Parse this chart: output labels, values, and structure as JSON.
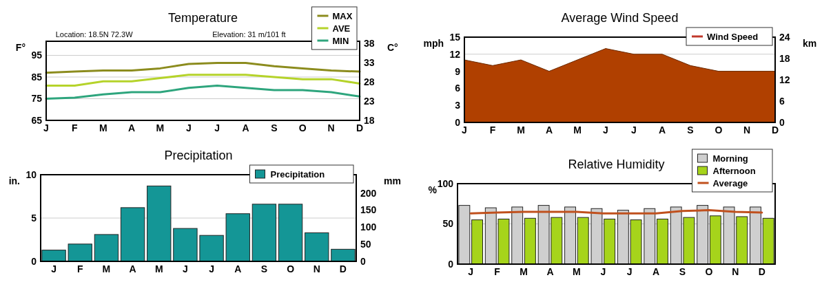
{
  "chart_data": [
    {
      "type": "line",
      "title": "Temperature",
      "ylabel": "F°",
      "y2label": "C°",
      "categories": [
        "J",
        "F",
        "M",
        "A",
        "M",
        "J",
        "J",
        "A",
        "S",
        "O",
        "N",
        "D"
      ],
      "ylim": [
        65,
        101.5
      ],
      "yticks": [
        65,
        75,
        85,
        95
      ],
      "y2lim": [
        18,
        38.6
      ],
      "y2ticks": [
        18,
        23,
        28,
        33,
        38
      ],
      "grid": "y",
      "legend": "top right",
      "annotations": [
        "Location: 18.5N 72.3W",
        "Elevation: 31 m/101 ft"
      ],
      "series": [
        {
          "name": "MAX",
          "color": "#8c8c1e",
          "values": [
            87,
            87.5,
            88,
            88,
            89,
            91,
            91.5,
            91.5,
            90,
            89,
            88,
            87.5
          ]
        },
        {
          "name": "AVE",
          "color": "#b5d32a",
          "values": [
            81,
            81,
            83,
            83,
            84.5,
            86,
            86,
            86,
            85,
            84,
            84,
            82
          ]
        },
        {
          "name": "MIN",
          "color": "#2ea57d",
          "values": [
            75,
            75.5,
            77,
            78,
            78,
            80,
            81,
            80,
            79,
            79,
            78,
            76
          ]
        }
      ]
    },
    {
      "type": "area",
      "title": "Average Wind Speed",
      "ylabel": "mph",
      "y2label": "km",
      "categories": [
        "J",
        "F",
        "M",
        "A",
        "M",
        "J",
        "J",
        "A",
        "S",
        "O",
        "N",
        "D"
      ],
      "ylim": [
        0,
        15
      ],
      "yticks": [
        0,
        3,
        6,
        9,
        12,
        15
      ],
      "y2lim": [
        0,
        24
      ],
      "y2ticks": [
        0,
        6,
        12,
        18,
        24
      ],
      "grid": "y",
      "legend": "top right",
      "series": [
        {
          "name": "Wind Speed",
          "color": "#b04000",
          "values": [
            11,
            10,
            11,
            9,
            11,
            13,
            12,
            12,
            10,
            9,
            9,
            9
          ]
        }
      ]
    },
    {
      "type": "bar",
      "title": "Precipitation",
      "ylabel": "in.",
      "y2label": "mm",
      "categories": [
        "J",
        "F",
        "M",
        "A",
        "M",
        "J",
        "J",
        "A",
        "S",
        "O",
        "N",
        "D"
      ],
      "ylim": [
        0,
        10
      ],
      "yticks": [
        0,
        5,
        10
      ],
      "y2lim": [
        0,
        254
      ],
      "y2ticks": [
        0,
        50,
        100,
        150,
        200
      ],
      "grid": "y",
      "legend": "top right",
      "series": [
        {
          "name": "Precipitation",
          "color": "#149696",
          "values": [
            1.3,
            2.0,
            3.1,
            6.2,
            8.7,
            3.8,
            3.0,
            5.5,
            6.6,
            6.6,
            3.3,
            1.4
          ]
        }
      ]
    },
    {
      "type": "bar",
      "title": "Relative Humidity",
      "ylabel": "%",
      "categories": [
        "J",
        "F",
        "M",
        "A",
        "M",
        "J",
        "J",
        "A",
        "S",
        "O",
        "N",
        "D"
      ],
      "ylim": [
        0,
        100
      ],
      "yticks": [
        0,
        50,
        100
      ],
      "grid": "y",
      "legend": "top right",
      "series": [
        {
          "name": "Morning",
          "color": "#cfcfcf",
          "values": [
            73,
            70,
            71,
            73,
            71,
            69,
            67,
            69,
            71,
            73,
            71,
            71
          ]
        },
        {
          "name": "Afternoon",
          "color": "#a6d41b",
          "values": [
            55,
            56,
            57,
            58,
            58,
            56,
            55,
            56,
            58,
            60,
            59,
            57
          ]
        },
        {
          "name": "Average",
          "type": "line",
          "color": "#c0501d",
          "values": [
            63,
            64,
            65,
            65,
            65,
            63,
            63,
            63,
            66,
            67,
            65,
            64
          ]
        }
      ]
    }
  ]
}
